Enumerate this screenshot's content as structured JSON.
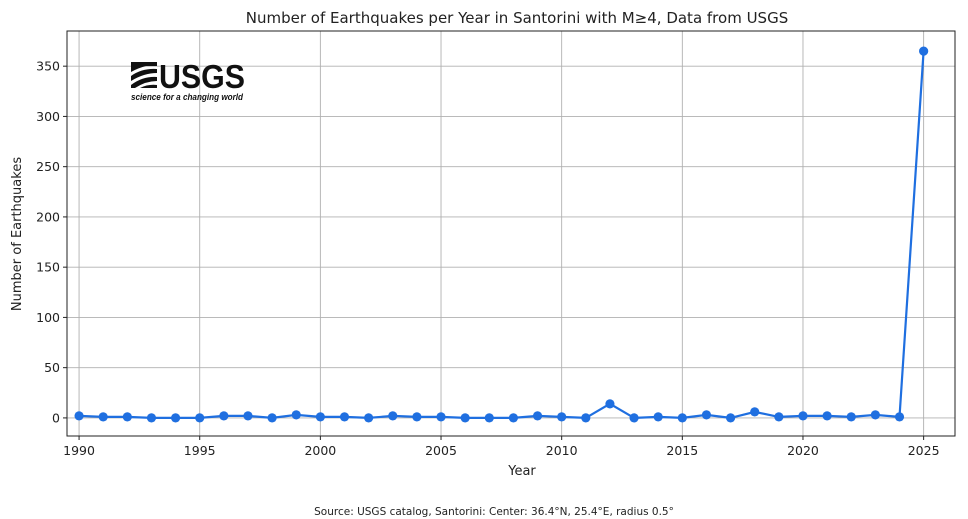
{
  "chart_data": {
    "type": "line",
    "title": "Number of Earthquakes per Year in Santorini with M≥4, Data from USGS",
    "xlabel": "Year",
    "ylabel": "Number of Earthquakes",
    "xlim": [
      1989.5,
      2026.3
    ],
    "ylim": [
      -18,
      385
    ],
    "x_ticks": [
      1990,
      1995,
      2000,
      2005,
      2010,
      2015,
      2020,
      2025
    ],
    "y_ticks": [
      0,
      50,
      100,
      150,
      200,
      250,
      300,
      350
    ],
    "grid": true,
    "series": [
      {
        "color": "#1f6fe0",
        "x": [
          1990,
          1991,
          1992,
          1993,
          1994,
          1995,
          1996,
          1997,
          1998,
          1999,
          2000,
          2001,
          2002,
          2003,
          2004,
          2005,
          2006,
          2007,
          2008,
          2009,
          2010,
          2011,
          2012,
          2013,
          2014,
          2015,
          2016,
          2017,
          2018,
          2019,
          2020,
          2021,
          2022,
          2023,
          2024,
          2025
        ],
        "y": [
          2,
          1,
          1,
          0,
          0,
          0,
          2,
          2,
          0,
          3,
          1,
          1,
          0,
          2,
          1,
          1,
          0,
          0,
          0,
          2,
          1,
          0,
          14,
          0,
          1,
          0,
          3,
          0,
          6,
          1,
          2,
          2,
          1,
          3,
          1,
          365
        ]
      }
    ]
  },
  "logo": {
    "name": "USGS",
    "tagline": "science for a changing world"
  },
  "source_note": "Source: USGS catalog, Santorini: Center: 36.4°N, 25.4°E, radius 0.5°"
}
